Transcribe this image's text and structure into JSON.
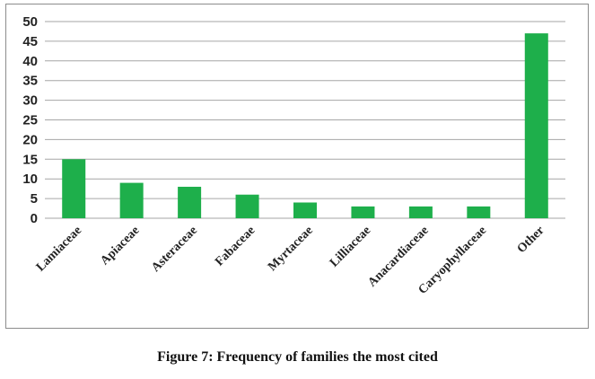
{
  "caption": "Figure 7: Frequency of families the most cited",
  "colors": {
    "bar": "#1eaf4b",
    "grid": "#a6a6a6",
    "axis_text": "#222222"
  },
  "chart_data": {
    "type": "bar",
    "categories": [
      "Lamiaceae",
      "Apiaceae",
      "Asteraceae",
      "Fabaceae",
      "Myrtaceae",
      "Lilliaceae",
      "Anacardiaceae",
      "Caryophyllaceae",
      "Other"
    ],
    "values": [
      15,
      9,
      8,
      6,
      4,
      3,
      3,
      3,
      47
    ],
    "yticks": [
      0,
      5,
      10,
      15,
      20,
      25,
      30,
      35,
      40,
      45,
      50
    ],
    "ylim": [
      0,
      50
    ],
    "grid": true,
    "legend": "none"
  }
}
